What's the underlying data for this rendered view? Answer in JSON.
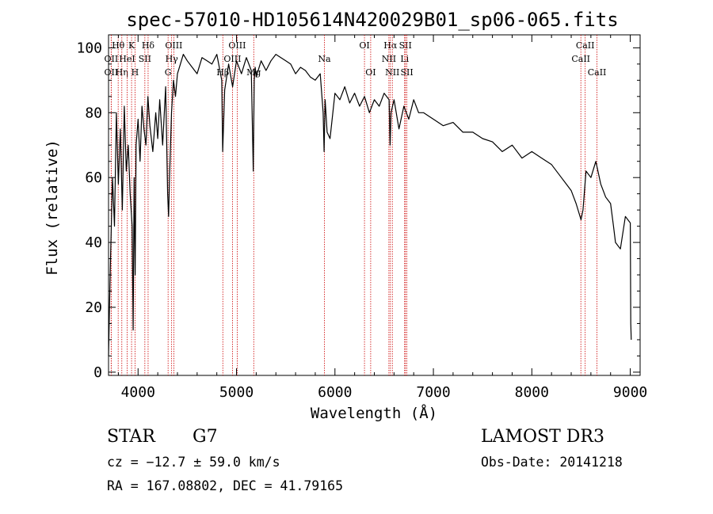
{
  "chart_data": {
    "type": "line",
    "title": "spec-57010-HD105614N420029B01_sp06-065.fits",
    "xlabel": "Wavelength (Å)",
    "ylabel": "Flux (relative)",
    "xlim": [
      3700,
      9100
    ],
    "ylim": [
      -1,
      104
    ],
    "xticks": [
      4000,
      5000,
      6000,
      7000,
      8000,
      9000
    ],
    "yticks": [
      0,
      20,
      40,
      60,
      80,
      100
    ],
    "grid": false,
    "line_color": "#000000",
    "marker_color": "#cc0000",
    "series": [
      {
        "x": [
          3700,
          3710,
          3720,
          3740,
          3760,
          3780,
          3800,
          3820,
          3840,
          3860,
          3880,
          3900,
          3920,
          3940,
          3950,
          3960,
          3970,
          3980,
          4000,
          4020,
          4040,
          4060,
          4080,
          4100,
          4120,
          4150,
          4180,
          4200,
          4220,
          4250,
          4280,
          4300,
          4310,
          4320,
          4340,
          4360,
          4380,
          4400,
          4430,
          4460,
          4500,
          4550,
          4600,
          4650,
          4700,
          4750,
          4800,
          4850,
          4860,
          4880,
          4920,
          4960,
          5000,
          5050,
          5100,
          5150,
          5170,
          5180,
          5190,
          5200,
          5250,
          5300,
          5350,
          5400,
          5450,
          5500,
          5550,
          5600,
          5650,
          5700,
          5750,
          5800,
          5850,
          5880,
          5890,
          5900,
          5920,
          5950,
          6000,
          6050,
          6100,
          6150,
          6200,
          6250,
          6300,
          6350,
          6400,
          6450,
          6500,
          6550,
          6560,
          6570,
          6600,
          6650,
          6700,
          6750,
          6800,
          6850,
          6900,
          6950,
          7000,
          7100,
          7200,
          7300,
          7400,
          7500,
          7600,
          7700,
          7800,
          7900,
          8000,
          8100,
          8200,
          8300,
          8350,
          8400,
          8450,
          8500,
          8520,
          8550,
          8600,
          8650,
          8700,
          8750,
          8800,
          8830,
          8850,
          8900,
          8950,
          9000,
          9005,
          9010
        ],
        "y": [
          5,
          20,
          35,
          60,
          45,
          80,
          58,
          75,
          50,
          82,
          62,
          70,
          55,
          45,
          13,
          60,
          30,
          70,
          78,
          65,
          82,
          75,
          70,
          85,
          76,
          68,
          80,
          72,
          84,
          70,
          88,
          55,
          48,
          60,
          80,
          90,
          85,
          92,
          95,
          98,
          96,
          94,
          92,
          97,
          96,
          95,
          98,
          90,
          68,
          87,
          95,
          88,
          96,
          92,
          97,
          93,
          62,
          90,
          94,
          91,
          96,
          93,
          96,
          98,
          97,
          96,
          95,
          92,
          94,
          93,
          91,
          90,
          92,
          80,
          68,
          84,
          74,
          72,
          86,
          84,
          88,
          83,
          86,
          82,
          85,
          80,
          84,
          82,
          86,
          84,
          70,
          80,
          84,
          75,
          82,
          78,
          84,
          80,
          80,
          79,
          78,
          76,
          77,
          74,
          74,
          72,
          71,
          68,
          70,
          66,
          68,
          66,
          64,
          60,
          58,
          56,
          52,
          47,
          50,
          62,
          60,
          65,
          58,
          54,
          52,
          45,
          40,
          38,
          48,
          46,
          15,
          10
        ]
      }
    ],
    "line_markers": [
      {
        "label": "Hθ",
        "x": 3798,
        "row": 0
      },
      {
        "label": "OII",
        "x": 3727,
        "row": 1
      },
      {
        "label": "OII",
        "x": 3727,
        "row": 2
      },
      {
        "label": "Hη",
        "x": 3835,
        "row": 2
      },
      {
        "label": "K",
        "x": 3934,
        "row": 0
      },
      {
        "label": "HeI",
        "x": 3889,
        "row": 1
      },
      {
        "label": "H",
        "x": 3969,
        "row": 2
      },
      {
        "label": "SII",
        "x": 4069,
        "row": 1
      },
      {
        "label": "Hδ",
        "x": 4102,
        "row": 0
      },
      {
        "label": "OIII",
        "x": 4363,
        "row": 0
      },
      {
        "label": "Hγ",
        "x": 4341,
        "row": 1
      },
      {
        "label": "G",
        "x": 4305,
        "row": 2
      },
      {
        "label": "OIII",
        "x": 5007,
        "row": 0
      },
      {
        "label": "OIII",
        "x": 4959,
        "row": 1
      },
      {
        "label": "Hβ",
        "x": 4861,
        "row": 2
      },
      {
        "label": "Mg",
        "x": 5175,
        "row": 2
      },
      {
        "label": "Na",
        "x": 5893,
        "row": 1
      },
      {
        "label": "OI",
        "x": 6300,
        "row": 0
      },
      {
        "label": "OI",
        "x": 6363,
        "row": 2
      },
      {
        "label": "Hα",
        "x": 6563,
        "row": 0
      },
      {
        "label": "SII",
        "x": 6716,
        "row": 0
      },
      {
        "label": "NII",
        "x": 6548,
        "row": 1
      },
      {
        "label": "Li",
        "x": 6708,
        "row": 1
      },
      {
        "label": "NII",
        "x": 6583,
        "row": 2
      },
      {
        "label": "SII",
        "x": 6731,
        "row": 2
      },
      {
        "label": "CaII",
        "x": 8542,
        "row": 0
      },
      {
        "label": "CaII",
        "x": 8498,
        "row": 1
      },
      {
        "label": "CaII",
        "x": 8662,
        "row": 2
      }
    ]
  },
  "info": {
    "object_class": "STAR",
    "subclass": "G7",
    "survey": "LAMOST DR3",
    "redshift_text": "cz = −12.7 ± 59.0 km/s",
    "obs_date_text": "Obs-Date: 20141218",
    "coords_text": "RA = 167.08802, DEC =  41.79165"
  }
}
